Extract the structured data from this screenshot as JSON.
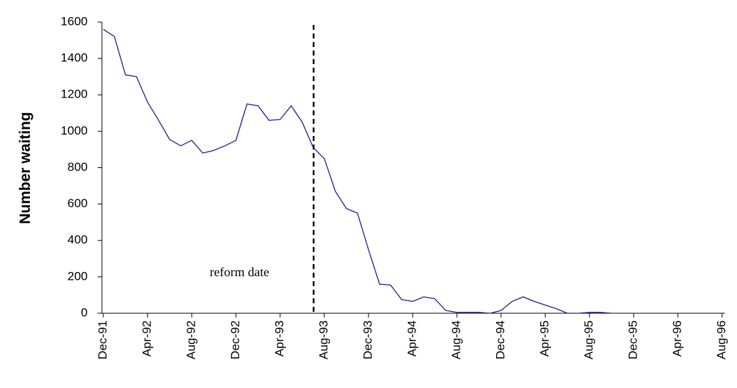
{
  "chart_data": {
    "type": "line",
    "y_label": "Number waiting",
    "annotation": "reform date",
    "categories": [
      "Dec-91",
      null,
      null,
      null,
      "Apr-92",
      null,
      null,
      null,
      "Aug-92",
      null,
      null,
      null,
      "Dec-92",
      null,
      null,
      null,
      "Apr-93",
      null,
      null,
      null,
      "Aug-93",
      null,
      null,
      null,
      "Dec-93",
      null,
      null,
      null,
      "Apr-94",
      null,
      null,
      null,
      "Aug-94",
      null,
      null,
      null,
      "Dec-94",
      null,
      null,
      null,
      "Apr-95",
      null,
      null,
      null,
      "Aug-95",
      null,
      null,
      null,
      "Dec-95",
      null,
      null,
      null,
      "Apr-96",
      null,
      null,
      null,
      "Aug-96"
    ],
    "values": [
      1560,
      1520,
      1310,
      1300,
      1160,
      1060,
      955,
      920,
      950,
      880,
      895,
      920,
      950,
      1150,
      1140,
      1060,
      1065,
      1140,
      1050,
      910,
      850,
      670,
      575,
      550,
      350,
      160,
      155,
      75,
      65,
      90,
      80,
      15,
      5,
      5,
      5,
      0,
      15,
      65,
      90,
      65,
      45,
      25,
      0,
      0,
      5,
      5,
      0,
      null,
      null,
      null,
      null,
      null,
      null,
      null,
      null,
      null,
      null
    ],
    "color": "#1f1f8f",
    "ylim": [
      0,
      1600
    ],
    "yticks": [
      0,
      200,
      400,
      600,
      800,
      1000,
      1200,
      1400,
      1600
    ]
  }
}
